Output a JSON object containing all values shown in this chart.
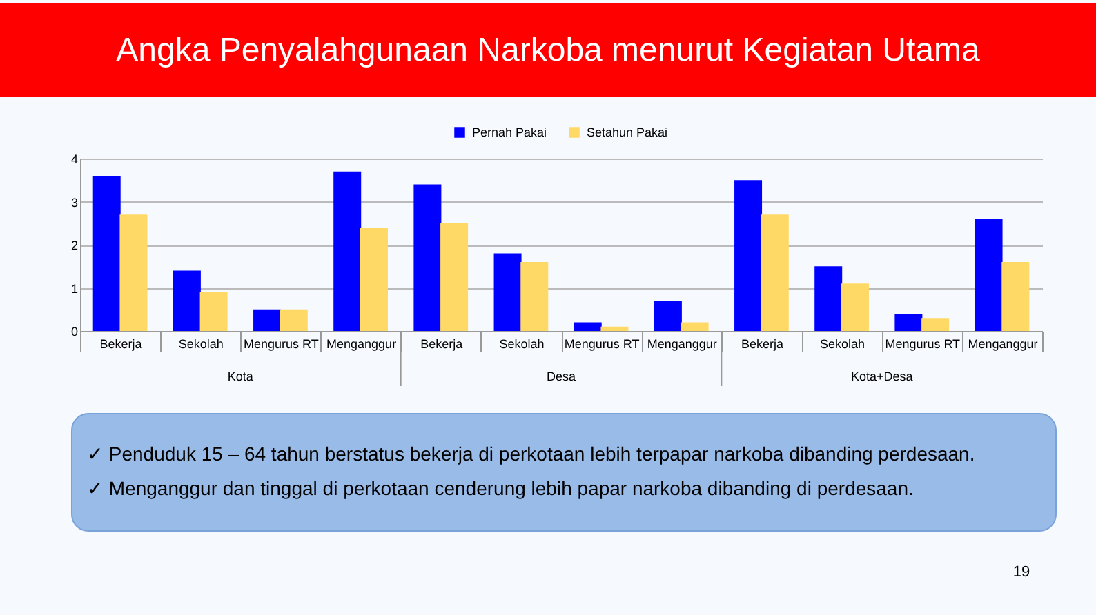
{
  "chart_data": {
    "type": "bar",
    "title": "Angka Penyalahgunaan Narkoba menurut Kegiatan Utama",
    "categories": [
      "Bekerja",
      "Sekolah",
      "Mengurus RT",
      "Menganggur",
      "Bekerja",
      "Sekolah",
      "Mengurus RT",
      "Menganggur",
      "Bekerja",
      "Sekolah",
      "Mengurus RT",
      "Menganggur"
    ],
    "series": [
      {
        "name": "Pernah Pakai",
        "color": "#0000ff",
        "values": [
          3.6,
          1.4,
          0.5,
          3.7,
          3.4,
          1.8,
          0.2,
          0.7,
          3.5,
          1.5,
          0.4,
          2.6
        ]
      },
      {
        "name": "Setahun Pakai",
        "color": "#ffd966",
        "values": [
          2.7,
          0.9,
          0.5,
          2.4,
          2.5,
          1.6,
          0.1,
          0.2,
          2.7,
          1.1,
          0.3,
          1.6
        ]
      }
    ],
    "ylim": [
      0,
      4
    ],
    "yticks": [
      0,
      1,
      2,
      3,
      4
    ],
    "grid": "y",
    "legend": "top",
    "annotations": [
      "Kota",
      "Desa",
      "Kota+Desa",
      "✓  Penduduk 15 – 64 tahun berstatus bekerja di perkotaan lebih terpapar narkoba dibanding perdesaan.",
      "✓  Menganggur dan tinggal di perkotaan cenderung lebih papar narkoba dibanding di perdesaan.",
      "19"
    ]
  }
}
